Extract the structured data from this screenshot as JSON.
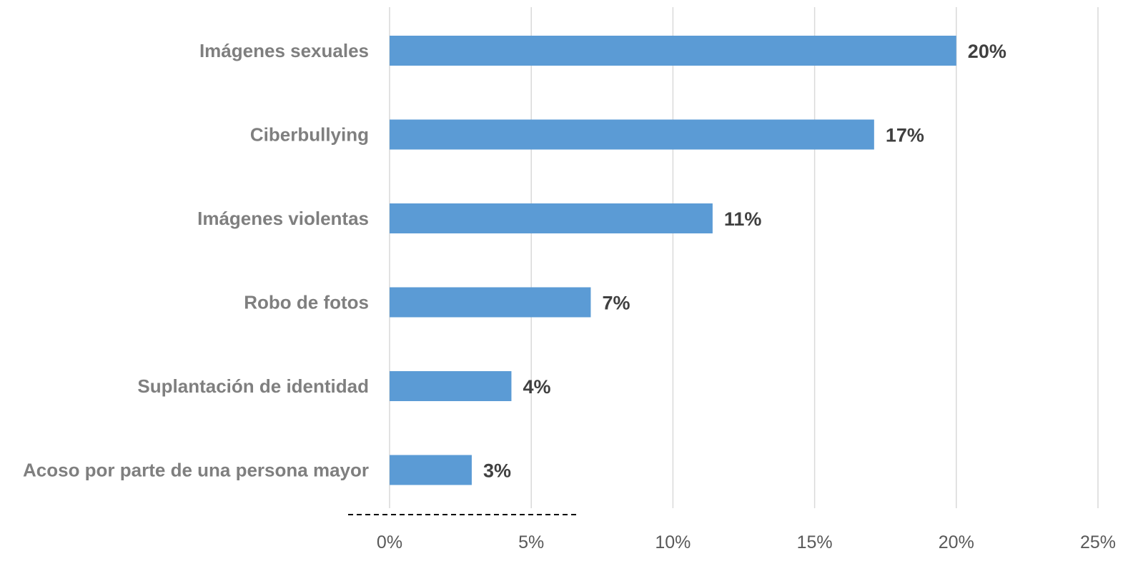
{
  "chart_data": {
    "type": "bar",
    "orientation": "horizontal",
    "categories": [
      "Imágenes sexuales",
      "Ciberbullying",
      "Imágenes violentas",
      "Robo de fotos",
      "Suplantación de identidad",
      "Acoso por parte de una persona mayor"
    ],
    "values": [
      20,
      17.1,
      11.4,
      7.1,
      4.3,
      2.9
    ],
    "data_labels": [
      "20%",
      "17%",
      "11%",
      "7%",
      "4%",
      "3%"
    ],
    "xlim": [
      0,
      25
    ],
    "x_ticks": [
      0,
      5,
      10,
      15,
      20,
      25
    ],
    "x_tick_labels": [
      "0%",
      "5%",
      "10%",
      "15%",
      "20%",
      "25%"
    ],
    "grid": "vertical",
    "bar_color": "#5b9bd5",
    "title": "",
    "xlabel": "",
    "ylabel": ""
  }
}
